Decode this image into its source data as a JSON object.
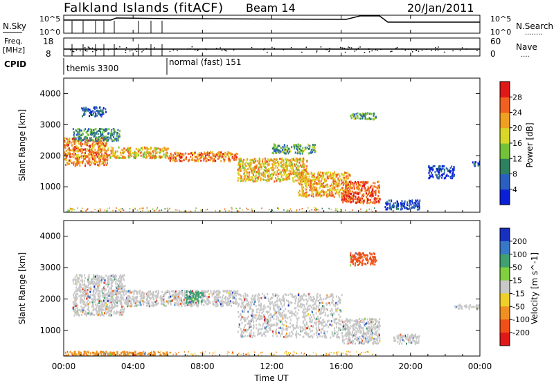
{
  "header": {
    "station": "Falkland Islands (fitACF)",
    "beam": "Beam 14",
    "date": "20/Jan/2011"
  },
  "noise_panel": {
    "left_label": "N.Sky",
    "right_label": "N.Search",
    "right_label_line": "........",
    "left_ticks": [
      "10^5",
      "10^0"
    ],
    "right_ticks": [
      "10^5",
      "10^0"
    ]
  },
  "freq_panel": {
    "left_label_1": "Freq.",
    "left_label_2": "[MHz]",
    "right_label": "Nave",
    "right_label_line": "....",
    "left_ticks": [
      "18",
      "8"
    ],
    "right_ticks": [
      "60",
      "0"
    ]
  },
  "cpid": {
    "label": "CPID",
    "segments": [
      "themis 3300",
      "normal (fast) 151"
    ]
  },
  "chart_data": [
    {
      "type": "heatmap",
      "name": "power",
      "ylabel": "Slant Range [km]",
      "y_ticks": [
        1000,
        2000,
        3000,
        4000
      ],
      "ylim": [
        180,
        4500
      ],
      "xlim": [
        0,
        24
      ],
      "colorbar": {
        "label": "Power [dB]",
        "ticks": [
          "4",
          "8",
          "12",
          "16",
          "20",
          "24",
          "28"
        ],
        "colors": [
          "#0a20d8",
          "#2a5fc0",
          "#2e8060",
          "#74c238",
          "#d8d828",
          "#f0a020",
          "#f06020",
          "#e01818"
        ]
      },
      "bands": [
        {
          "x": [
            0.0,
            2.5
          ],
          "y": [
            1700,
            2600
          ],
          "value": 24
        },
        {
          "x": [
            0.5,
            3.2
          ],
          "y": [
            2500,
            2900
          ],
          "value": 10
        },
        {
          "x": [
            1.0,
            2.4
          ],
          "y": [
            3300,
            3600
          ],
          "value": 6
        },
        {
          "x": [
            2.5,
            6.0
          ],
          "y": [
            1950,
            2300
          ],
          "value": 20
        },
        {
          "x": [
            6.0,
            10.0
          ],
          "y": [
            1850,
            2150
          ],
          "value": 24
        },
        {
          "x": [
            10.0,
            14.0
          ],
          "y": [
            1200,
            1950
          ],
          "value": 20
        },
        {
          "x": [
            12.0,
            14.5
          ],
          "y": [
            2100,
            2400
          ],
          "value": 12
        },
        {
          "x": [
            13.5,
            16.5
          ],
          "y": [
            700,
            1500
          ],
          "value": 22
        },
        {
          "x": [
            16.0,
            18.2
          ],
          "y": [
            500,
            1200
          ],
          "value": 26
        },
        {
          "x": [
            16.5,
            18.0
          ],
          "y": [
            3200,
            3400
          ],
          "value": 12
        },
        {
          "x": [
            18.5,
            20.5
          ],
          "y": [
            300,
            600
          ],
          "value": 4
        },
        {
          "x": [
            21.0,
            22.5
          ],
          "y": [
            1300,
            1700
          ],
          "value": 4
        },
        {
          "x": [
            23.5,
            24.0
          ],
          "y": [
            1700,
            1850
          ],
          "value": 4
        }
      ]
    },
    {
      "type": "heatmap",
      "name": "velocity",
      "ylabel": "Slant Range [km]",
      "y_ticks": [
        1000,
        2000,
        3000,
        4000
      ],
      "ylim": [
        180,
        4500
      ],
      "xlim": [
        0,
        24
      ],
      "colorbar": {
        "label": "Velocity [m s^-1]",
        "unit_exponent": "-1",
        "ticks": [
          "200",
          "100",
          "50",
          "15",
          "-15",
          "-50",
          "-100",
          "-200"
        ],
        "colors": [
          "#1830c0",
          "#3878c8",
          "#40a070",
          "#80d040",
          "#c8c8c8",
          "#f0d028",
          "#f09020",
          "#f05018",
          "#e01818"
        ]
      },
      "bands": [
        {
          "x": [
            0.5,
            3.5
          ],
          "y": [
            1500,
            2800
          ],
          "value": 0
        },
        {
          "x": [
            3.5,
            10.0
          ],
          "y": [
            1800,
            2300
          ],
          "value": 0
        },
        {
          "x": [
            7.0,
            8.0
          ],
          "y": [
            1900,
            2300
          ],
          "value": 60
        },
        {
          "x": [
            10.0,
            16.0
          ],
          "y": [
            800,
            2200
          ],
          "value": 0
        },
        {
          "x": [
            16.0,
            18.2
          ],
          "y": [
            600,
            1400
          ],
          "value": 0
        },
        {
          "x": [
            0.0,
            6.0
          ],
          "y": [
            200,
            350
          ],
          "value": -80
        },
        {
          "x": [
            16.5,
            18.0
          ],
          "y": [
            3100,
            3500
          ],
          "value": -120
        },
        {
          "x": [
            19.0,
            20.5
          ],
          "y": [
            600,
            900
          ],
          "value": 0
        },
        {
          "x": [
            22.5,
            24.0
          ],
          "y": [
            1700,
            1850
          ],
          "value": 0
        }
      ]
    }
  ],
  "x_axis": {
    "ticks": [
      "00:00",
      "04:00",
      "08:00",
      "12:00",
      "16:00",
      "20:00",
      "00:00"
    ],
    "label": "Time UT"
  }
}
